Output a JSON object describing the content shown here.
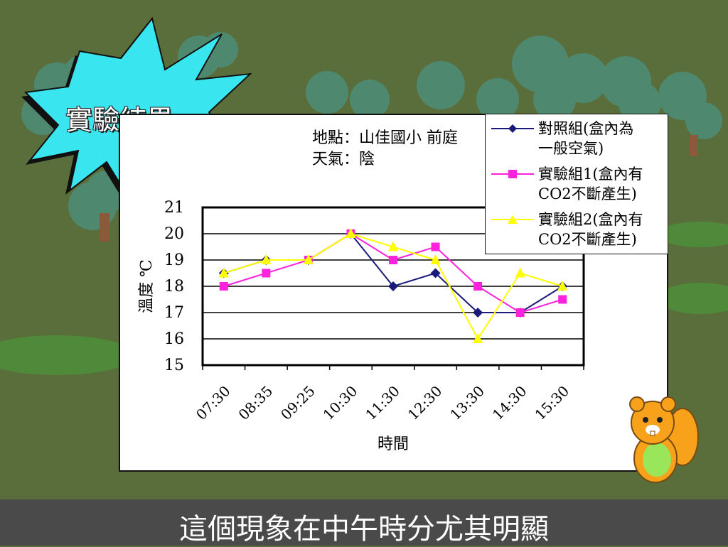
{
  "title": "實驗結果",
  "info": {
    "location": "地點：山佳國小 前庭",
    "weather": "天氣：陰"
  },
  "caption": "這個現象在中午時分尤其明顯",
  "colors": {
    "background": "#5a6e3c",
    "burst": "#39e6f0",
    "control": "#1a1a7a",
    "exp1": "#ff22dd",
    "exp2": "#ffff00"
  },
  "chart_data": {
    "type": "line",
    "categories": [
      "07:30",
      "08:35",
      "09:25",
      "10:30",
      "11:30",
      "12:30",
      "13:30",
      "14:30",
      "15:30"
    ],
    "ylabel": "溫度 ℃",
    "xlabel": "時間",
    "ylim": [
      15,
      21
    ],
    "yticks": [
      15,
      16,
      17,
      18,
      19,
      20,
      21
    ],
    "grid": true,
    "legend_position": "top-right",
    "x_points": [
      0.5,
      1.5,
      2.5,
      3.5,
      4.5,
      5.5,
      6.5,
      7.5,
      8.5
    ],
    "series": [
      {
        "name_line1": "對照組(盒內為",
        "name_line2": "一般空氣)",
        "marker": "diamond",
        "color": "#1a1a7a",
        "values": [
          18.5,
          19.0,
          19.0,
          20.0,
          18.0,
          18.5,
          17.0,
          17.0,
          18.0
        ]
      },
      {
        "name_line1": "實驗組1(盒內有",
        "name_line2": "CO2不斷產生)",
        "marker": "square",
        "color": "#ff22dd",
        "values": [
          18.0,
          18.5,
          19.0,
          20.0,
          19.0,
          19.5,
          18.0,
          17.0,
          17.5
        ]
      },
      {
        "name_line1": "實驗組2(盒內有",
        "name_line2": "CO2不斷產生)",
        "marker": "triangle",
        "color": "#ffff00",
        "values": [
          18.5,
          19.0,
          19.0,
          20.0,
          19.5,
          19.0,
          16.0,
          18.5,
          18.0
        ]
      }
    ]
  }
}
